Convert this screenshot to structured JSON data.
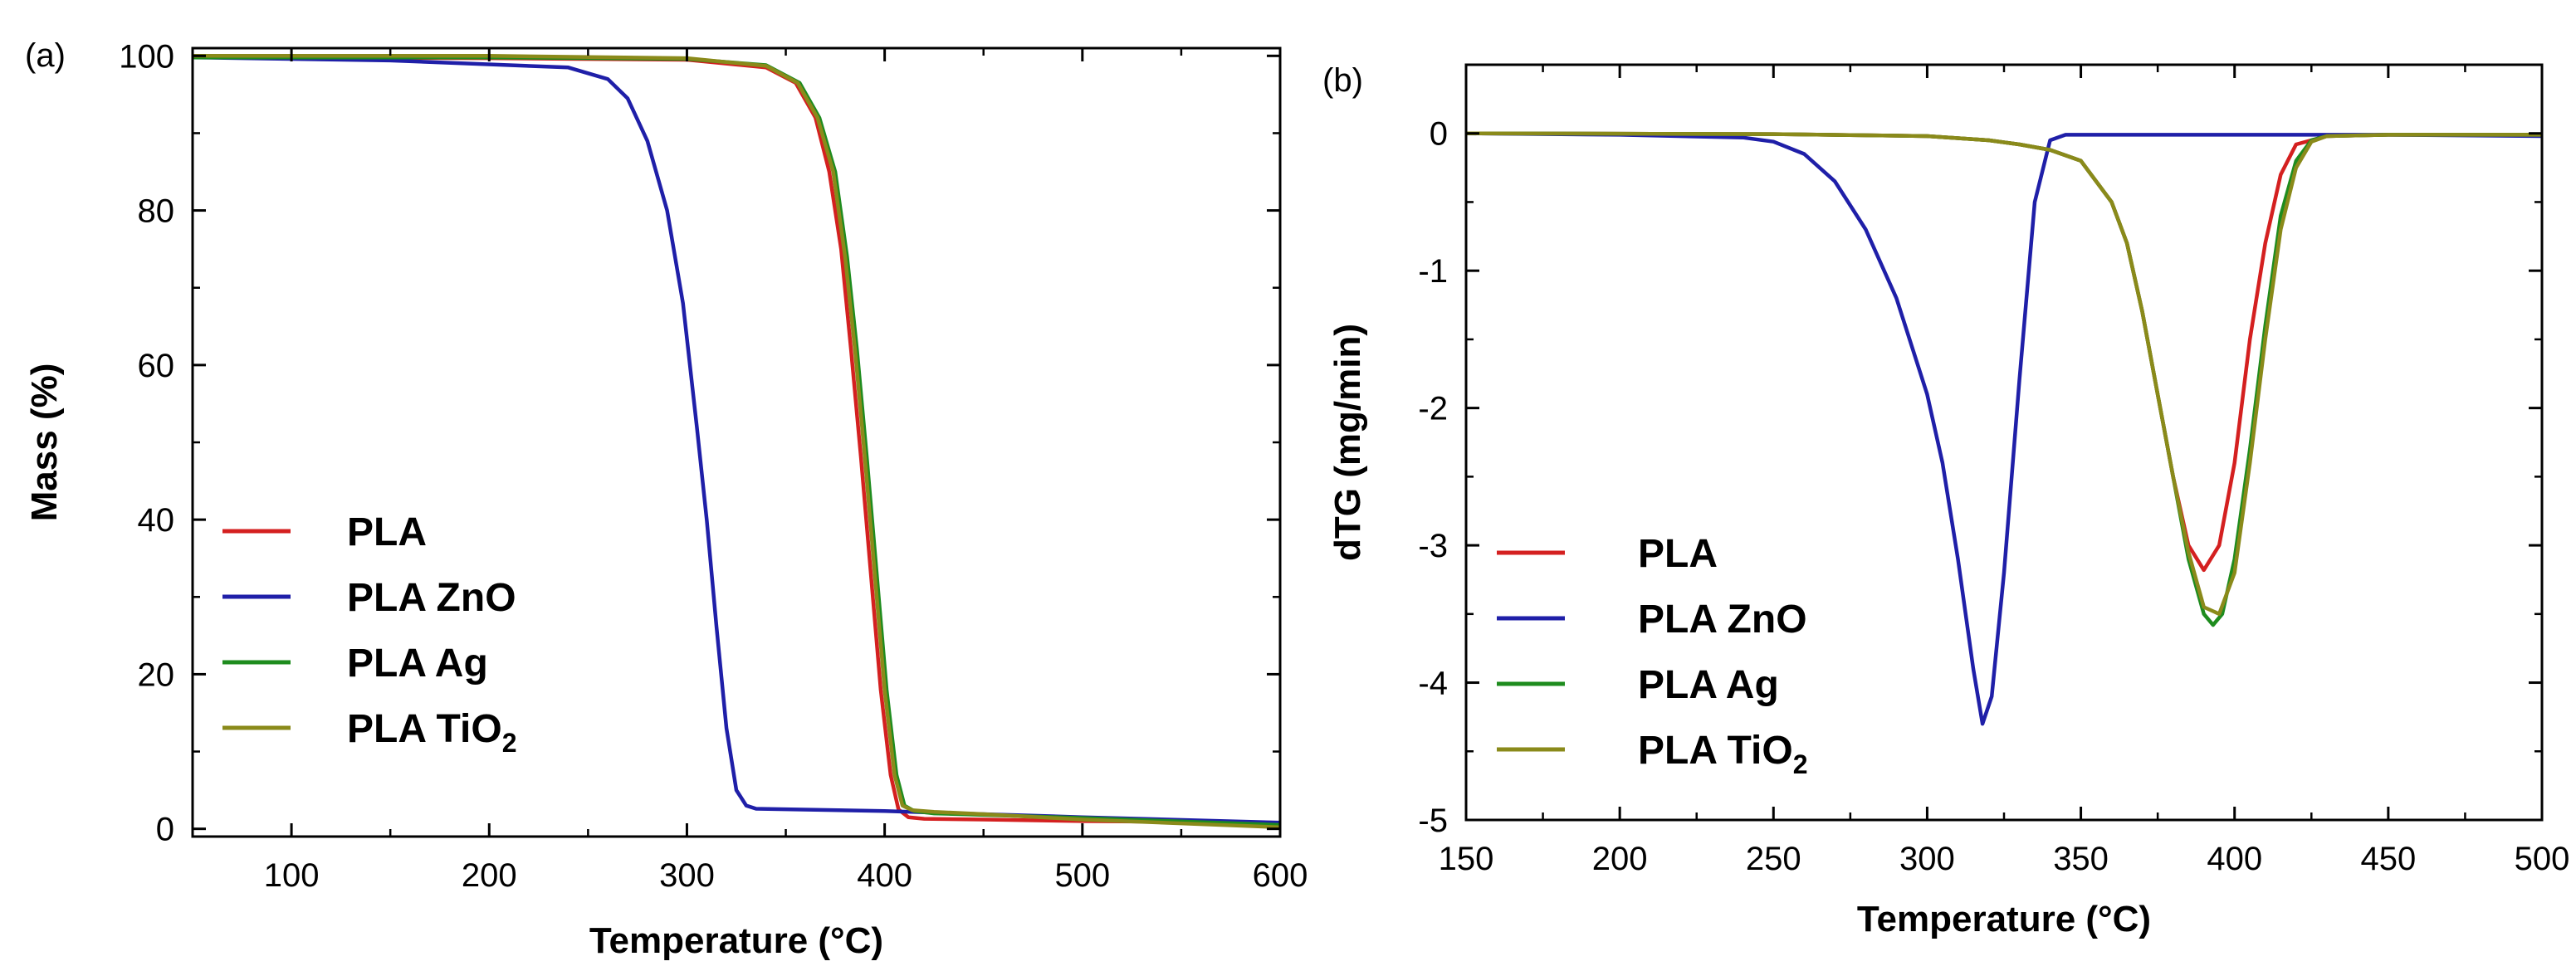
{
  "chart_data": [
    {
      "panel_label": "(a)",
      "type": "line",
      "xlabel": "Temperature (°C)",
      "ylabel": "Mass (%)",
      "xlim": [
        50,
        600
      ],
      "ylim": [
        -1,
        101
      ],
      "xticks": [
        100,
        200,
        300,
        400,
        500,
        600
      ],
      "yticks": [
        0,
        20,
        40,
        60,
        80,
        100
      ],
      "legend_position": "left-lower",
      "series": [
        {
          "name": "PLA",
          "label": "PLA",
          "color": "#d42020",
          "x": [
            50,
            200,
            300,
            340,
            355,
            365,
            372,
            378,
            383,
            388,
            393,
            398,
            403,
            407,
            412,
            420,
            450,
            500,
            600
          ],
          "y": [
            99.8,
            99.7,
            99.5,
            98.5,
            96.5,
            92,
            85,
            75,
            62,
            48,
            33,
            18,
            7,
            2.5,
            1.5,
            1.3,
            1.2,
            1.0,
            0.8
          ]
        },
        {
          "name": "PLA ZnO",
          "label": "PLA ZnO",
          "color": "#1f1fa8",
          "x": [
            50,
            150,
            240,
            260,
            270,
            280,
            290,
            298,
            305,
            310,
            315,
            320,
            325,
            330,
            335,
            400,
            500,
            600
          ],
          "y": [
            99.8,
            99.4,
            98.5,
            97,
            94.5,
            89,
            80,
            68,
            52,
            40,
            26,
            13,
            5,
            3,
            2.6,
            2.3,
            1.5,
            0.8
          ]
        },
        {
          "name": "PLA Ag",
          "label": "PLA  Ag",
          "color": "#1e8c1e",
          "x": [
            50,
            200,
            300,
            340,
            357,
            367,
            375,
            381,
            386,
            391,
            396,
            401,
            406,
            410,
            415,
            425,
            450,
            500,
            600
          ],
          "y": [
            99.8,
            99.8,
            99.6,
            98.8,
            96.5,
            92,
            85,
            74,
            62,
            48,
            33,
            18,
            7,
            3,
            2.3,
            2.0,
            1.8,
            1.4,
            0.5
          ]
        },
        {
          "name": "PLA TiO2",
          "label": "PLA TiO",
          "label_sub": "2",
          "color": "#8a8a1a",
          "x": [
            50,
            200,
            300,
            340,
            356,
            366,
            374,
            380,
            385,
            390,
            395,
            400,
            405,
            409,
            414,
            425,
            450,
            500,
            600
          ],
          "y": [
            100,
            100,
            99.7,
            98.7,
            96.5,
            92,
            85,
            74,
            62,
            48,
            33,
            18,
            7,
            3,
            2.4,
            2.2,
            1.9,
            1.2,
            0.2
          ]
        }
      ]
    },
    {
      "panel_label": "(b)",
      "type": "line",
      "xlabel": "Temperature (°C)",
      "ylabel": "dTG (mg/min)",
      "xlim": [
        150,
        500
      ],
      "ylim": [
        -5,
        0.5
      ],
      "xticks": [
        150,
        200,
        250,
        300,
        350,
        400,
        450,
        500
      ],
      "yticks": [
        -5,
        -4,
        -3,
        -2,
        -1,
        0
      ],
      "legend_position": "left-lower",
      "series": [
        {
          "name": "PLA",
          "label": " PLA",
          "color": "#d42020",
          "x": [
            150,
            250,
            300,
            320,
            330,
            340,
            350,
            360,
            365,
            370,
            375,
            380,
            385,
            390,
            395,
            400,
            405,
            410,
            415,
            420,
            430,
            450,
            500
          ],
          "y": [
            0,
            -0.005,
            -0.02,
            -0.05,
            -0.08,
            -0.12,
            -0.2,
            -0.5,
            -0.8,
            -1.3,
            -1.9,
            -2.5,
            -3.0,
            -3.18,
            -3.0,
            -2.4,
            -1.5,
            -0.8,
            -0.3,
            -0.08,
            -0.02,
            -0.01,
            -0.01
          ]
        },
        {
          "name": "PLA ZnO",
          "label": "PLA ZnO",
          "color": "#1f1fa8",
          "x": [
            150,
            200,
            240,
            250,
            260,
            270,
            280,
            290,
            300,
            305,
            310,
            315,
            318,
            321,
            325,
            330,
            335,
            340,
            345,
            350,
            400,
            450,
            500
          ],
          "y": [
            0,
            -0.01,
            -0.03,
            -0.06,
            -0.15,
            -0.35,
            -0.7,
            -1.2,
            -1.9,
            -2.4,
            -3.1,
            -3.9,
            -4.3,
            -4.1,
            -3.2,
            -1.8,
            -0.5,
            -0.05,
            -0.01,
            -0.01,
            -0.01,
            -0.01,
            -0.02
          ]
        },
        {
          "name": "PLA Ag",
          "label": "PLA Ag",
          "color": "#1e8c1e",
          "x": [
            150,
            250,
            300,
            320,
            330,
            340,
            350,
            360,
            365,
            370,
            375,
            380,
            385,
            390,
            393,
            396,
            400,
            405,
            410,
            415,
            420,
            425,
            430,
            450,
            500
          ],
          "y": [
            0,
            -0.005,
            -0.02,
            -0.05,
            -0.08,
            -0.12,
            -0.2,
            -0.5,
            -0.8,
            -1.3,
            -1.9,
            -2.5,
            -3.1,
            -3.5,
            -3.58,
            -3.5,
            -3.1,
            -2.3,
            -1.4,
            -0.6,
            -0.2,
            -0.05,
            -0.02,
            -0.01,
            -0.01
          ]
        },
        {
          "name": "PLA TiO2",
          "label": "PLA TiO",
          "label_sub": "2",
          "color": "#8a8a1a",
          "x": [
            150,
            250,
            300,
            320,
            330,
            340,
            350,
            360,
            365,
            370,
            375,
            380,
            385,
            390,
            395,
            400,
            405,
            410,
            415,
            420,
            425,
            430,
            450,
            500
          ],
          "y": [
            0,
            -0.005,
            -0.02,
            -0.05,
            -0.08,
            -0.12,
            -0.2,
            -0.5,
            -0.8,
            -1.3,
            -1.9,
            -2.5,
            -3.05,
            -3.45,
            -3.5,
            -3.2,
            -2.4,
            -1.5,
            -0.7,
            -0.25,
            -0.06,
            -0.02,
            -0.01,
            -0.01
          ]
        }
      ]
    }
  ]
}
